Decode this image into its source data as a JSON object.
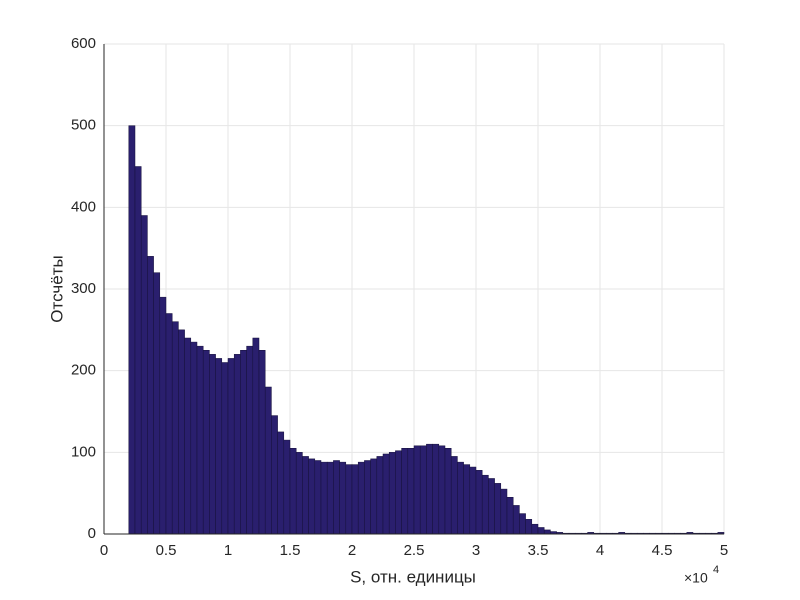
{
  "chart_data": {
    "type": "histogram",
    "xlabel": "S, отн. единицы",
    "ylabel": "Отсчёты",
    "x_multiplier": "×10",
    "x_multiplier_exponent": "4",
    "color": "#2a1f6e",
    "edgecolor": "#15103a",
    "grid": true,
    "xlim": [
      0,
      5
    ],
    "xticks": [
      0,
      0.5,
      1,
      1.5,
      2,
      2.5,
      3,
      3.5,
      4,
      4.5,
      5
    ],
    "ylim": [
      0,
      600
    ],
    "yticks": [
      0,
      100,
      200,
      300,
      400,
      500,
      600
    ],
    "bins": [
      0.2,
      0.25,
      0.3,
      0.35,
      0.4,
      0.45,
      0.5,
      0.55,
      0.6,
      0.65,
      0.7,
      0.75,
      0.8,
      0.85,
      0.9,
      0.95,
      1,
      1.05,
      1.1,
      1.15,
      1.2,
      1.25,
      1.3,
      1.35,
      1.4,
      1.45,
      1.5,
      1.55,
      1.6,
      1.65,
      1.7,
      1.75,
      1.8,
      1.85,
      1.9,
      1.95,
      2,
      2.05,
      2.1,
      2.15,
      2.2,
      2.25,
      2.3,
      2.35,
      2.4,
      2.45,
      2.5,
      2.55,
      2.6,
      2.65,
      2.7,
      2.75,
      2.8,
      2.85,
      2.9,
      2.95,
      3,
      3.05,
      3.1,
      3.15,
      3.2,
      3.25,
      3.3,
      3.35,
      3.4,
      3.45,
      3.5,
      3.55,
      3.6,
      3.65,
      3.7,
      3.75,
      3.8,
      3.85,
      3.9,
      3.95,
      4,
      4.05,
      4.1,
      4.15,
      4.2,
      4.25,
      4.3,
      4.35,
      4.4,
      4.45,
      4.5,
      4.55,
      4.6,
      4.65,
      4.7,
      4.75,
      4.8,
      4.85,
      4.9,
      4.95,
      5
    ],
    "values": [
      500,
      450,
      390,
      340,
      320,
      290,
      270,
      260,
      250,
      240,
      235,
      230,
      225,
      220,
      215,
      210,
      215,
      220,
      225,
      230,
      240,
      225,
      180,
      145,
      125,
      115,
      105,
      100,
      95,
      92,
      90,
      88,
      88,
      90,
      88,
      85,
      85,
      88,
      90,
      92,
      95,
      98,
      100,
      102,
      105,
      105,
      108,
      108,
      110,
      110,
      108,
      105,
      95,
      88,
      85,
      82,
      78,
      72,
      68,
      62,
      55,
      45,
      35,
      25,
      18,
      12,
      8,
      5,
      3,
      2,
      1,
      1,
      1,
      1,
      2,
      1,
      1,
      1,
      1,
      2,
      1,
      1,
      1,
      1,
      1,
      1,
      1,
      1,
      1,
      1,
      2,
      1,
      1,
      1,
      1,
      2
    ]
  }
}
